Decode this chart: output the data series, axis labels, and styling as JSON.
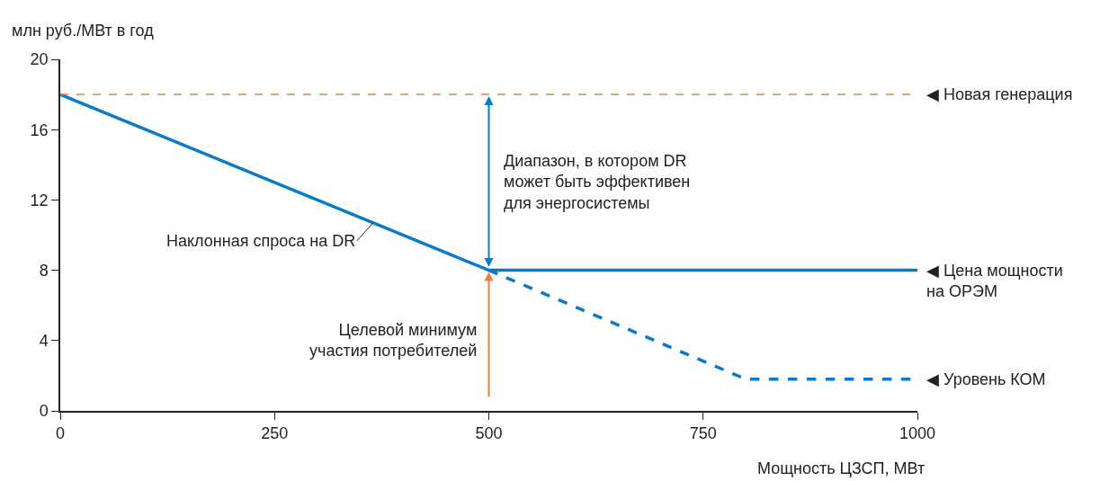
{
  "chart_data": {
    "type": "line",
    "ylabel": "млн руб./МВт в год",
    "xlabel": "Мощность ЦЗСП, МВт",
    "series": [
      {
        "color": "#0a7ac9",
        "line_style": "solid",
        "x": [
          0,
          500,
          1000
        ],
        "values": [
          18,
          8,
          8
        ]
      },
      {
        "color": "#0a7ac9",
        "line_style": "dashed",
        "x": [
          500,
          800,
          1000
        ],
        "values": [
          8,
          1.8,
          1.8
        ]
      }
    ],
    "xlim": [
      0,
      1000
    ],
    "xticks": [
      0,
      250,
      500,
      750,
      1000
    ],
    "ylim": [
      0,
      20
    ],
    "yticks": [
      0,
      4,
      8,
      12,
      16,
      20
    ],
    "grid": false,
    "ref_lines": [
      {
        "axis": "y",
        "value": 18,
        "label": "◀ Новая генерация",
        "color": "#f07c3c",
        "line_style": "dashed"
      }
    ],
    "annotations": [
      "Диапазон, в котором DR\nможет быть эффективен\nдля энергосистемы",
      "Целевой минимум\nучастия потребителей",
      "Наклонная спроса на DR",
      "◀ Цена мощности\nна ОРЭМ",
      "◀ Уровень КОМ"
    ]
  }
}
